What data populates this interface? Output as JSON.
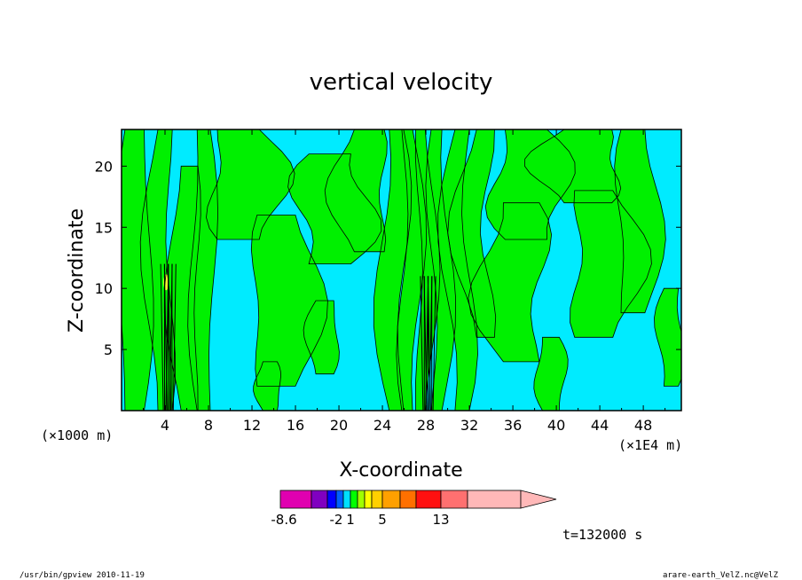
{
  "chart_data": {
    "type": "heatmap",
    "title": "vertical velocity",
    "xlabel": "X-coordinate",
    "ylabel": "Z-coordinate",
    "x_unit_left": "(×1000 m)",
    "x_unit_right": "(×1E4 m)",
    "x_ticks": [
      4,
      8,
      12,
      16,
      20,
      24,
      28,
      32,
      36,
      40,
      44,
      48
    ],
    "y_ticks": [
      5,
      10,
      15,
      20
    ],
    "xlim": [
      0,
      51.5
    ],
    "ylim": [
      0,
      23
    ],
    "colorbar": {
      "tick_labels": [
        "-8.6",
        "-2",
        "1",
        "5",
        "13"
      ],
      "colors": [
        "#e000b0",
        "#8000c0",
        "#0000ff",
        "#0060ff",
        "#00e0ff",
        "#00ff00",
        "#a0ff00",
        "#ffff00",
        "#ffd000",
        "#ffa000",
        "#ff7000",
        "#ff1010",
        "#ff7070",
        "#ffb8b8"
      ]
    },
    "field_colors": {
      "negative": "#00ebff",
      "positive": "#00f000",
      "strong": "#ffff30",
      "contour": "#000000"
    },
    "time_label": "t=132000 s",
    "footer_left": "/usr/bin/gpview   2010-11-19",
    "footer_right": "arare-earth_VelZ.nc@VelZ"
  }
}
